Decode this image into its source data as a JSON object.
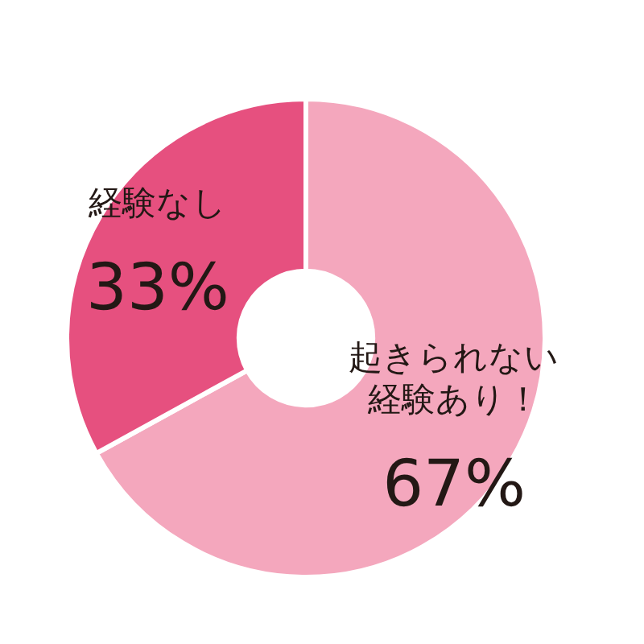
{
  "chart_data": {
    "type": "donut",
    "categories": [
      "起きられない経験あり！",
      "経験なし"
    ],
    "values": [
      67,
      33
    ],
    "colors": [
      "#f4a7bd",
      "#e6507f"
    ],
    "value_labels": [
      "67%",
      "33%"
    ],
    "legend": false
  }
}
